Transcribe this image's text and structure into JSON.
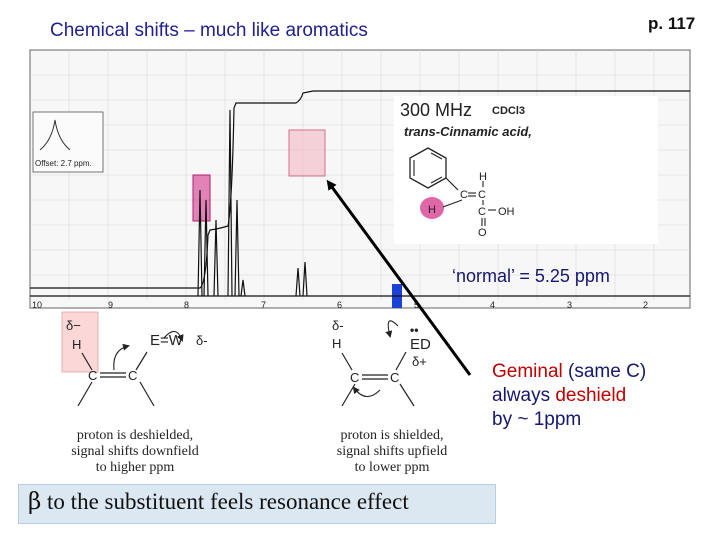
{
  "header": {
    "title": "Chemical shifts – much like aromatics",
    "page": "p. 117"
  },
  "spectrum": {
    "frequency": "300 MHz",
    "solvent": "CDCl3",
    "compound": "trans-Cinnamic acid,",
    "offset": "Offset: 2.7 ppm.",
    "axis_ticks": [
      "10",
      "9",
      "8",
      "7",
      "6",
      "5",
      "4",
      "3",
      "2"
    ],
    "structure_atoms": {
      "c1": "C",
      "c2": "C",
      "c3": "C",
      "h1": "H",
      "h2": "H",
      "oh": "OH",
      "o": "O"
    }
  },
  "annotation": {
    "normal": "‘normal’ = 5.25 ppm",
    "geminal_line1_red": "Geminal",
    "geminal_line1_rest": " (same C)",
    "geminal_line2_plain": "always ",
    "geminal_line2_red": "deshield",
    "geminal_line3": "by ~ 1ppm"
  },
  "diagram_left": {
    "delta_minus": "δ−",
    "h": "H",
    "ew": "E=W",
    "delta_minus2": "δ-",
    "c1": "C",
    "c2": "C",
    "caption": [
      "proton is deshielded,",
      "signal shifts downfield",
      "to higher ppm"
    ]
  },
  "diagram_right": {
    "delta_minus": "δ-",
    "h": "H",
    "ed": "ED",
    "lone_pair": "••",
    "delta_plus": "δ+",
    "c1": "C",
    "c2": "C",
    "caption": [
      "proton is shielded,",
      "signal shifts upfield",
      "to lower ppm"
    ]
  },
  "footer": {
    "beta_symbol": "β",
    "beta_text": " to the substituent feels resonance effect"
  },
  "colors": {
    "title": "#1f1f8f",
    "highlight_pink": "#d4338a",
    "highlight_blue": "#1c3fd6",
    "red_text": "#c00000",
    "footer_box": "#dbe7f1"
  }
}
